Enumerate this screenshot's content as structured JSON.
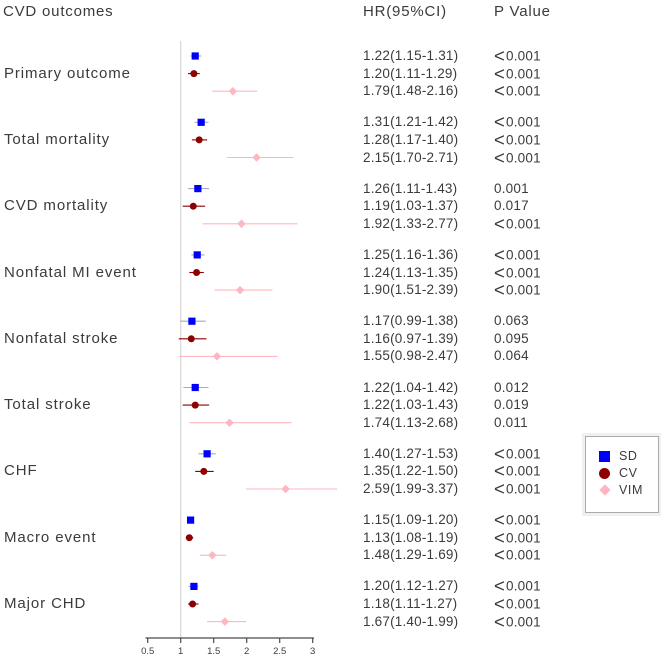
{
  "chart_data": {
    "type": "forest",
    "columns": {
      "outcome": "CVD outcomes",
      "hr": "HR(95%CI)",
      "p": "P Value"
    },
    "x_axis": {
      "scale": "linear",
      "ticks": [
        0.5,
        1,
        1.5,
        2,
        2.5,
        3
      ],
      "reference_line": 1
    },
    "legend_position": "right",
    "series": [
      {
        "name": "SD",
        "marker": "square",
        "color": "#0000fa",
        "ci_color": "#a9a9c4"
      },
      {
        "name": "CV",
        "marker": "circle",
        "color": "#8b0000",
        "ci_color": "#8b0000"
      },
      {
        "name": "VIM",
        "marker": "diamond",
        "color": "#ffb6c1",
        "ci_color": "#ffb6c1"
      }
    ],
    "groups": [
      {
        "label": "Primary outcome",
        "rows": [
          {
            "series": "SD",
            "hr": 1.22,
            "lo": 1.15,
            "hi": 1.31,
            "label": "1.22(1.15-1.31)",
            "p": "<0.001"
          },
          {
            "series": "CV",
            "hr": 1.2,
            "lo": 1.11,
            "hi": 1.29,
            "label": "1.20(1.11-1.29)",
            "p": "<0.001"
          },
          {
            "series": "VIM",
            "hr": 1.79,
            "lo": 1.48,
            "hi": 2.16,
            "label": "1.79(1.48-2.16)",
            "p": "<0.001"
          }
        ]
      },
      {
        "label": "Total mortality",
        "rows": [
          {
            "series": "SD",
            "hr": 1.31,
            "lo": 1.21,
            "hi": 1.42,
            "label": "1.31(1.21-1.42)",
            "p": "<0.001"
          },
          {
            "series": "CV",
            "hr": 1.28,
            "lo": 1.17,
            "hi": 1.4,
            "label": "1.28(1.17-1.40)",
            "p": "<0.001"
          },
          {
            "series": "VIM",
            "hr": 2.15,
            "lo": 1.7,
            "hi": 2.71,
            "label": "2.15(1.70-2.71)",
            "p": "<0.001"
          }
        ]
      },
      {
        "label": "CVD mortality",
        "rows": [
          {
            "series": "SD",
            "hr": 1.26,
            "lo": 1.11,
            "hi": 1.43,
            "label": "1.26(1.11-1.43)",
            "p": "0.001"
          },
          {
            "series": "CV",
            "hr": 1.19,
            "lo": 1.03,
            "hi": 1.37,
            "label": "1.19(1.03-1.37)",
            "p": "0.017"
          },
          {
            "series": "VIM",
            "hr": 1.92,
            "lo": 1.33,
            "hi": 2.77,
            "label": "1.92(1.33-2.77)",
            "p": "<0.001"
          }
        ]
      },
      {
        "label": "Nonfatal MI event",
        "rows": [
          {
            "series": "SD",
            "hr": 1.25,
            "lo": 1.16,
            "hi": 1.36,
            "label": "1.25(1.16-1.36)",
            "p": "<0.001"
          },
          {
            "series": "CV",
            "hr": 1.24,
            "lo": 1.13,
            "hi": 1.35,
            "label": "1.24(1.13-1.35)",
            "p": "<0.001"
          },
          {
            "series": "VIM",
            "hr": 1.9,
            "lo": 1.51,
            "hi": 2.39,
            "label": "1.90(1.51-2.39)",
            "p": "<0.001"
          }
        ]
      },
      {
        "label": "Nonfatal stroke",
        "rows": [
          {
            "series": "SD",
            "hr": 1.17,
            "lo": 0.99,
            "hi": 1.38,
            "label": "1.17(0.99-1.38)",
            "p": "0.063"
          },
          {
            "series": "CV",
            "hr": 1.16,
            "lo": 0.97,
            "hi": 1.39,
            "label": "1.16(0.97-1.39)",
            "p": "0.095"
          },
          {
            "series": "VIM",
            "hr": 1.55,
            "lo": 0.98,
            "hi": 2.47,
            "label": "1.55(0.98-2.47)",
            "p": "0.064"
          }
        ]
      },
      {
        "label": "Total stroke",
        "rows": [
          {
            "series": "SD",
            "hr": 1.22,
            "lo": 1.04,
            "hi": 1.42,
            "label": "1.22(1.04-1.42)",
            "p": "0.012"
          },
          {
            "series": "CV",
            "hr": 1.22,
            "lo": 1.03,
            "hi": 1.43,
            "label": "1.22(1.03-1.43)",
            "p": "0.019"
          },
          {
            "series": "VIM",
            "hr": 1.74,
            "lo": 1.13,
            "hi": 2.68,
            "label": "1.74(1.13-2.68)",
            "p": "0.011"
          }
        ]
      },
      {
        "label": "CHF",
        "rows": [
          {
            "series": "SD",
            "hr": 1.4,
            "lo": 1.27,
            "hi": 1.53,
            "label": "1.40(1.27-1.53)",
            "p": "<0.001"
          },
          {
            "series": "CV",
            "hr": 1.35,
            "lo": 1.22,
            "hi": 1.5,
            "label": "1.35(1.22-1.50)",
            "p": "<0.001"
          },
          {
            "series": "VIM",
            "hr": 2.59,
            "lo": 1.99,
            "hi": 3.37,
            "label": "2.59(1.99-3.37)",
            "p": "<0.001"
          }
        ]
      },
      {
        "label": "Macro event",
        "rows": [
          {
            "series": "SD",
            "hr": 1.15,
            "lo": 1.09,
            "hi": 1.2,
            "label": "1.15(1.09-1.20)",
            "p": "<0.001"
          },
          {
            "series": "CV",
            "hr": 1.13,
            "lo": 1.08,
            "hi": 1.19,
            "label": "1.13(1.08-1.19)",
            "p": "<0.001"
          },
          {
            "series": "VIM",
            "hr": 1.48,
            "lo": 1.29,
            "hi": 1.69,
            "label": "1.48(1.29-1.69)",
            "p": "<0.001"
          }
        ]
      },
      {
        "label": "Major CHD",
        "rows": [
          {
            "series": "SD",
            "hr": 1.2,
            "lo": 1.12,
            "hi": 1.27,
            "label": "1.20(1.12-1.27)",
            "p": "<0.001"
          },
          {
            "series": "CV",
            "hr": 1.18,
            "lo": 1.11,
            "hi": 1.27,
            "label": "1.18(1.11-1.27)",
            "p": "<0.001"
          },
          {
            "series": "VIM",
            "hr": 1.67,
            "lo": 1.4,
            "hi": 1.99,
            "label": "1.67(1.40-1.99)",
            "p": "<0.001"
          }
        ]
      }
    ]
  }
}
